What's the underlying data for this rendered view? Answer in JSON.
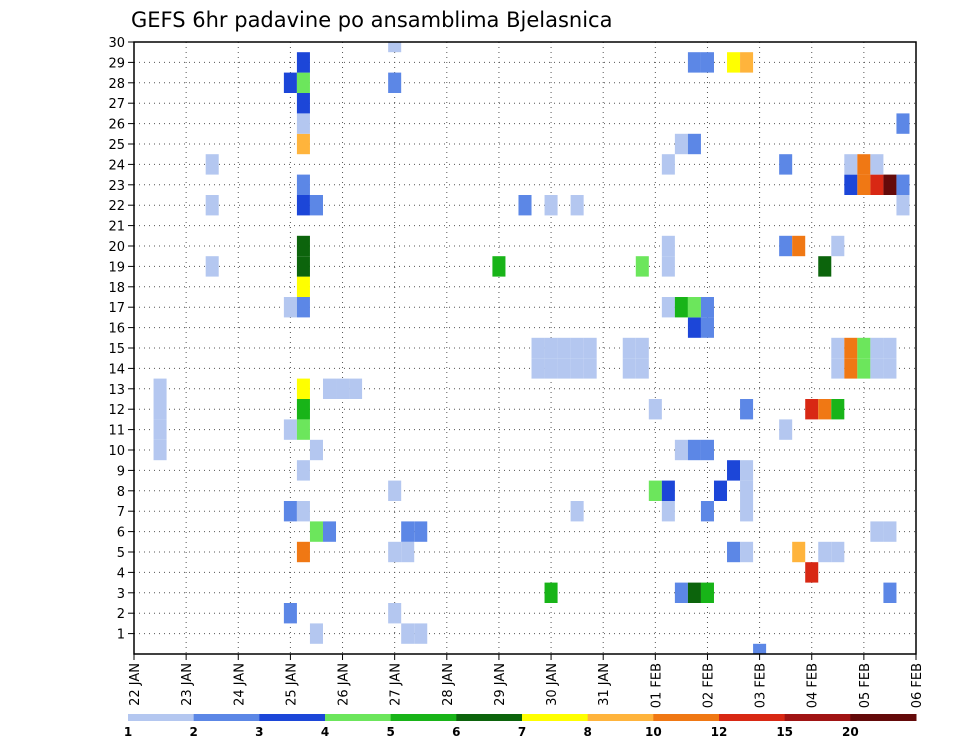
{
  "chart_data": {
    "type": "heatmap",
    "title": "GEFS 6hr padavine po ansamblima Bjelasnica",
    "y_tick_labels": [
      "1",
      "2",
      "3",
      "4",
      "5",
      "6",
      "7",
      "8",
      "9",
      "10",
      "11",
      "12",
      "13",
      "14",
      "15",
      "16",
      "17",
      "18",
      "19",
      "20",
      "21",
      "22",
      "23",
      "24",
      "25",
      "26",
      "27",
      "28",
      "29",
      "30"
    ],
    "x_tick_labels": [
      "22 JAN",
      "23 JAN",
      "24 JAN",
      "25 JAN",
      "26 JAN",
      "27 JAN",
      "28 JAN",
      "29 JAN",
      "30 JAN",
      "31 JAN",
      "01 FEB",
      "02 FEB",
      "03 FEB",
      "04 FEB",
      "05 FEB",
      "06 FEB"
    ],
    "x_unit": "days since 22 JAN 00Z (6-hourly steps)",
    "grid": "dotted",
    "colorbar": {
      "labels": [
        "1",
        "2",
        "3",
        "4",
        "5",
        "6",
        "7",
        "8",
        "10",
        "12",
        "15",
        "20"
      ],
      "colors": [
        "#b4c7f0",
        "#5c87e6",
        "#1c46d8",
        "#6ce65c",
        "#18b418",
        "#0c640c",
        "#ffff00",
        "#ffb43c",
        "#f07814",
        "#d82814",
        "#a01414",
        "#640a0a"
      ]
    },
    "cells": [
      {
        "x": 3.5,
        "y": 1,
        "c": 1
      },
      {
        "x": 5.25,
        "y": 1,
        "c": 1
      },
      {
        "x": 5.5,
        "y": 1,
        "c": 1
      },
      {
        "x": 3.0,
        "y": 2,
        "c": 2
      },
      {
        "x": 5.0,
        "y": 2,
        "c": 1
      },
      {
        "x": 8.0,
        "y": 3,
        "c": 5
      },
      {
        "x": 10.5,
        "y": 3,
        "c": 2
      },
      {
        "x": 10.75,
        "y": 3,
        "c": 6
      },
      {
        "x": 11.0,
        "y": 3,
        "c": 5
      },
      {
        "x": 14.5,
        "y": 3,
        "c": 2
      },
      {
        "x": 13.0,
        "y": 4,
        "c": 12
      },
      {
        "x": 3.25,
        "y": 5,
        "c": 10
      },
      {
        "x": 5.0,
        "y": 5,
        "c": 1
      },
      {
        "x": 5.25,
        "y": 5,
        "c": 1
      },
      {
        "x": 11.5,
        "y": 5,
        "c": 2
      },
      {
        "x": 11.75,
        "y": 5,
        "c": 1
      },
      {
        "x": 12.75,
        "y": 5,
        "c": 8
      },
      {
        "x": 13.25,
        "y": 5,
        "c": 1
      },
      {
        "x": 13.5,
        "y": 5,
        "c": 1
      },
      {
        "x": 3.5,
        "y": 6,
        "c": 4
      },
      {
        "x": 3.75,
        "y": 6,
        "c": 2
      },
      {
        "x": 5.25,
        "y": 6,
        "c": 2
      },
      {
        "x": 5.5,
        "y": 6,
        "c": 2
      },
      {
        "x": 14.25,
        "y": 6,
        "c": 1
      },
      {
        "x": 14.5,
        "y": 6,
        "c": 1
      },
      {
        "x": 3.0,
        "y": 7,
        "c": 2
      },
      {
        "x": 3.25,
        "y": 7,
        "c": 1
      },
      {
        "x": 8.5,
        "y": 7,
        "c": 1
      },
      {
        "x": 10.25,
        "y": 7,
        "c": 1
      },
      {
        "x": 11.0,
        "y": 7,
        "c": 2
      },
      {
        "x": 11.75,
        "y": 7,
        "c": 1
      },
      {
        "x": 5.0,
        "y": 8,
        "c": 1
      },
      {
        "x": 10.0,
        "y": 8,
        "c": 4
      },
      {
        "x": 10.25,
        "y": 8,
        "c": 3
      },
      {
        "x": 11.25,
        "y": 8,
        "c": 3
      },
      {
        "x": 11.75,
        "y": 8,
        "c": 1
      },
      {
        "x": 3.25,
        "y": 9,
        "c": 1
      },
      {
        "x": 11.5,
        "y": 9,
        "c": 3
      },
      {
        "x": 11.75,
        "y": 9,
        "c": 1
      },
      {
        "x": 3.5,
        "y": 10,
        "c": 1
      },
      {
        "x": 0.5,
        "y": 10,
        "c": 1
      },
      {
        "x": 10.5,
        "y": 10,
        "c": 1
      },
      {
        "x": 10.75,
        "y": 10,
        "c": 2
      },
      {
        "x": 11.0,
        "y": 10,
        "c": 2
      },
      {
        "x": 0.5,
        "y": 11,
        "c": 1
      },
      {
        "x": 3.0,
        "y": 11,
        "c": 1
      },
      {
        "x": 3.25,
        "y": 11,
        "c": 4
      },
      {
        "x": 12.5,
        "y": 11,
        "c": 1
      },
      {
        "x": 0.5,
        "y": 12,
        "c": 1
      },
      {
        "x": 3.25,
        "y": 12,
        "c": 5
      },
      {
        "x": 10.0,
        "y": 12,
        "c": 1
      },
      {
        "x": 11.75,
        "y": 12,
        "c": 2
      },
      {
        "x": 13.0,
        "y": 12,
        "c": 12
      },
      {
        "x": 13.25,
        "y": 12,
        "c": 10
      },
      {
        "x": 13.5,
        "y": 12,
        "c": 5
      },
      {
        "x": 0.5,
        "y": 13,
        "c": 1
      },
      {
        "x": 3.25,
        "y": 13,
        "c": 7
      },
      {
        "x": 3.75,
        "y": 13,
        "c": 1
      },
      {
        "x": 4.0,
        "y": 13,
        "c": 1
      },
      {
        "x": 4.25,
        "y": 13,
        "c": 1
      },
      {
        "x": 7.75,
        "y": 14,
        "c": 1
      },
      {
        "x": 8.0,
        "y": 14,
        "c": 1
      },
      {
        "x": 8.25,
        "y": 14,
        "c": 1
      },
      {
        "x": 8.5,
        "y": 14,
        "c": 1
      },
      {
        "x": 8.75,
        "y": 14,
        "c": 1
      },
      {
        "x": 9.5,
        "y": 14,
        "c": 1
      },
      {
        "x": 9.75,
        "y": 14,
        "c": 1
      },
      {
        "x": 13.5,
        "y": 14,
        "c": 1
      },
      {
        "x": 13.75,
        "y": 14,
        "c": 10
      },
      {
        "x": 14.0,
        "y": 14,
        "c": 4
      },
      {
        "x": 14.25,
        "y": 14,
        "c": 1
      },
      {
        "x": 14.5,
        "y": 14,
        "c": 1
      },
      {
        "x": 7.75,
        "y": 15,
        "c": 1
      },
      {
        "x": 8.0,
        "y": 15,
        "c": 1
      },
      {
        "x": 8.25,
        "y": 15,
        "c": 1
      },
      {
        "x": 8.5,
        "y": 15,
        "c": 1
      },
      {
        "x": 8.75,
        "y": 15,
        "c": 1
      },
      {
        "x": 9.5,
        "y": 15,
        "c": 1
      },
      {
        "x": 9.75,
        "y": 15,
        "c": 1
      },
      {
        "x": 13.5,
        "y": 15,
        "c": 1
      },
      {
        "x": 13.75,
        "y": 15,
        "c": 10
      },
      {
        "x": 14.0,
        "y": 15,
        "c": 4
      },
      {
        "x": 14.25,
        "y": 15,
        "c": 1
      },
      {
        "x": 14.5,
        "y": 15,
        "c": 1
      },
      {
        "x": 10.75,
        "y": 16,
        "c": 3
      },
      {
        "x": 11.0,
        "y": 16,
        "c": 2
      },
      {
        "x": 3.0,
        "y": 17,
        "c": 1
      },
      {
        "x": 3.25,
        "y": 17,
        "c": 2
      },
      {
        "x": 10.25,
        "y": 17,
        "c": 1
      },
      {
        "x": 10.5,
        "y": 17,
        "c": 5
      },
      {
        "x": 10.75,
        "y": 17,
        "c": 4
      },
      {
        "x": 11.0,
        "y": 17,
        "c": 2
      },
      {
        "x": 3.25,
        "y": 18,
        "c": 7
      },
      {
        "x": 1.5,
        "y": 19,
        "c": 1
      },
      {
        "x": 3.25,
        "y": 19,
        "c": 6
      },
      {
        "x": 7.0,
        "y": 19,
        "c": 5
      },
      {
        "x": 9.75,
        "y": 19,
        "c": 4
      },
      {
        "x": 10.25,
        "y": 19,
        "c": 1
      },
      {
        "x": 13.25,
        "y": 19,
        "c": 6
      },
      {
        "x": 3.25,
        "y": 20,
        "c": 6
      },
      {
        "x": 10.25,
        "y": 20,
        "c": 1
      },
      {
        "x": 12.5,
        "y": 20,
        "c": 2
      },
      {
        "x": 12.75,
        "y": 20,
        "c": 10
      },
      {
        "x": 13.5,
        "y": 20,
        "c": 1
      },
      {
        "x": 1.5,
        "y": 22,
        "c": 1
      },
      {
        "x": 3.25,
        "y": 22,
        "c": 3
      },
      {
        "x": 3.5,
        "y": 22,
        "c": 2
      },
      {
        "x": 7.5,
        "y": 22,
        "c": 2
      },
      {
        "x": 8.0,
        "y": 22,
        "c": 1
      },
      {
        "x": 8.5,
        "y": 22,
        "c": 1
      },
      {
        "x": 14.75,
        "y": 22,
        "c": 1
      },
      {
        "x": 3.25,
        "y": 23,
        "c": 2
      },
      {
        "x": 13.75,
        "y": 23,
        "c": 3
      },
      {
        "x": 14.0,
        "y": 23,
        "c": 10
      },
      {
        "x": 14.25,
        "y": 23,
        "c": 12
      },
      {
        "x": 14.5,
        "y": 23,
        "c": 20
      },
      {
        "x": 14.75,
        "y": 23,
        "c": 2
      },
      {
        "x": 1.5,
        "y": 24,
        "c": 1
      },
      {
        "x": 10.25,
        "y": 24,
        "c": 1
      },
      {
        "x": 12.5,
        "y": 24,
        "c": 2
      },
      {
        "x": 13.75,
        "y": 24,
        "c": 1
      },
      {
        "x": 14.0,
        "y": 24,
        "c": 10
      },
      {
        "x": 14.25,
        "y": 24,
        "c": 1
      },
      {
        "x": 3.25,
        "y": 25,
        "c": 8
      },
      {
        "x": 10.5,
        "y": 25,
        "c": 1
      },
      {
        "x": 10.75,
        "y": 25,
        "c": 2
      },
      {
        "x": 3.25,
        "y": 26,
        "c": 1
      },
      {
        "x": 14.75,
        "y": 26,
        "c": 2
      },
      {
        "x": 3.25,
        "y": 27,
        "c": 3
      },
      {
        "x": 3.0,
        "y": 28,
        "c": 3
      },
      {
        "x": 3.25,
        "y": 28,
        "c": 4
      },
      {
        "x": 5.0,
        "y": 28,
        "c": 2
      },
      {
        "x": 3.25,
        "y": 29,
        "c": 3
      },
      {
        "x": 10.75,
        "y": 29,
        "c": 2
      },
      {
        "x": 11.0,
        "y": 29,
        "c": 2
      },
      {
        "x": 11.5,
        "y": 29,
        "c": 7
      },
      {
        "x": 11.75,
        "y": 29,
        "c": 8
      },
      {
        "x": 5.0,
        "y": 30,
        "c": 1
      },
      {
        "x": 12.0,
        "y": 0,
        "c": 2
      }
    ]
  }
}
